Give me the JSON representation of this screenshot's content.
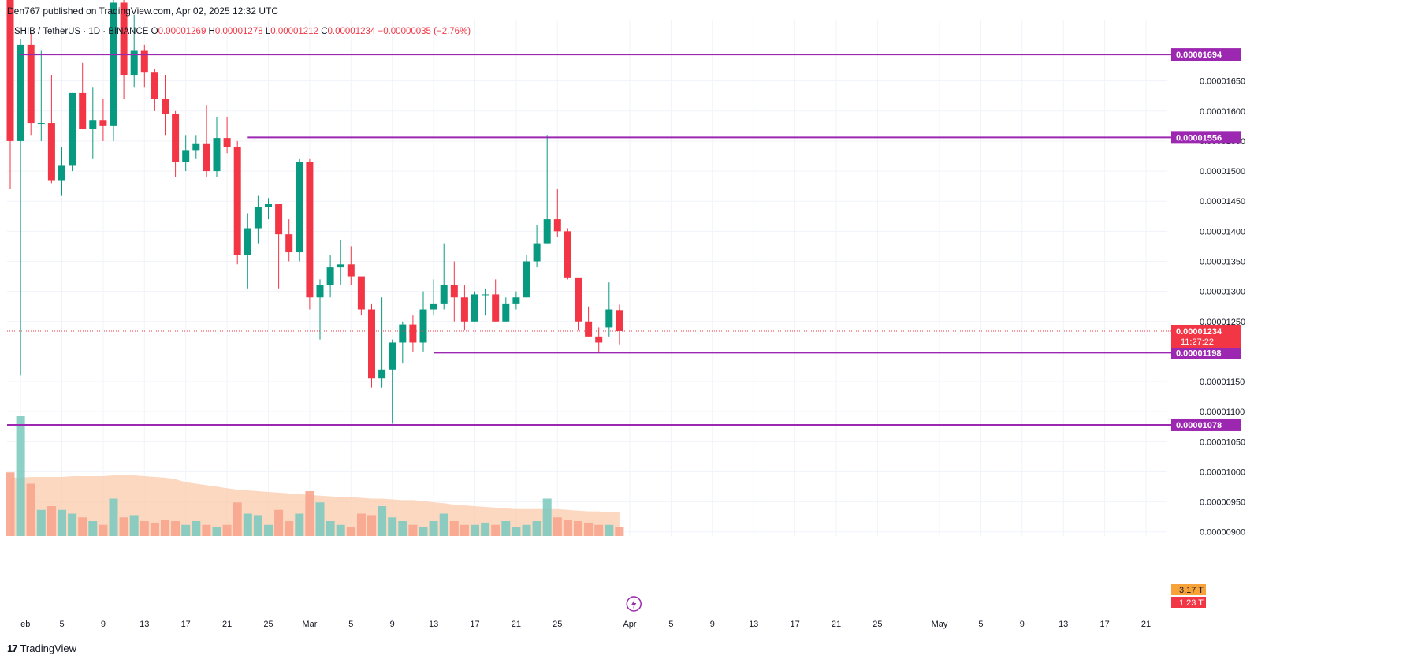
{
  "header": {
    "published": "Den767 published on TradingView.com, Apr 02, 2025 12:32 UTC"
  },
  "legend": {
    "symbol": "SHIB / TetherUS · 1D · BINANCE",
    "o_label": "O",
    "o": "0.00001269",
    "h_label": "H",
    "h": "0.00001278",
    "l_label": "L",
    "l": "0.00001212",
    "c_label": "C",
    "c": "0.00001234",
    "change": "−0.00000035 (−2.76%)"
  },
  "brand": {
    "logo": "17",
    "name": "TradingView"
  },
  "colors": {
    "up": "#089981",
    "down": "#f23645",
    "level": "#9c27b0",
    "grid": "#f0f3fa",
    "axis_text": "#131722",
    "vol_up": "#7fcbc0",
    "vol_down": "#f7a58d",
    "vol_ma": "#fbc8a5"
  },
  "chart_data": {
    "type": "candlestick",
    "y_axis_ticks": [
      "0.00001650",
      "0.00001600",
      "0.00001550",
      "0.00001500",
      "0.00001450",
      "0.00001400",
      "0.00001350",
      "0.00001300",
      "0.00001250",
      "0.00001150",
      "0.00001100",
      "0.00001050",
      "0.00001000",
      "0.00000950",
      "0.00000900"
    ],
    "ylim": [
      8.8e-06,
      1.74e-05
    ],
    "x_axis_labels": [
      "eb",
      "5",
      "9",
      "13",
      "17",
      "21",
      "25",
      "Mar",
      "5",
      "9",
      "13",
      "17",
      "21",
      "25",
      "Apr",
      "5",
      "9",
      "13",
      "17",
      "21",
      "25",
      "May",
      "5",
      "9",
      "13",
      "17",
      "21"
    ],
    "x_axis_label_days": [
      1,
      5,
      9,
      13,
      17,
      21,
      25,
      29,
      33,
      37,
      41,
      45,
      49,
      53,
      60,
      64,
      68,
      72,
      76,
      80,
      84,
      90,
      94,
      98,
      102,
      106,
      110
    ],
    "first_day": "Feb 1, 2025",
    "ohlc": [
      [
        1.8e-05,
        1.87e-05,
        1.47e-05,
        1.55e-05
      ],
      [
        1.55e-05,
        1.72e-05,
        1.16e-05,
        1.71e-05
      ],
      [
        1.71e-05,
        1.73e-05,
        1.56e-05,
        1.58e-05
      ],
      [
        1.58e-05,
        1.7e-05,
        1.55e-05,
        1.58e-05
      ],
      [
        1.58e-05,
        1.66e-05,
        1.48e-05,
        1.485e-05
      ],
      [
        1.485e-05,
        1.54e-05,
        1.46e-05,
        1.51e-05
      ],
      [
        1.51e-05,
        1.63e-05,
        1.5e-05,
        1.63e-05
      ],
      [
        1.63e-05,
        1.68e-05,
        1.57e-05,
        1.57e-05
      ],
      [
        1.57e-05,
        1.64e-05,
        1.52e-05,
        1.585e-05
      ],
      [
        1.585e-05,
        1.62e-05,
        1.55e-05,
        1.575e-05
      ],
      [
        1.575e-05,
        1.82e-05,
        1.55e-05,
        1.78e-05
      ],
      [
        1.78e-05,
        1.8e-05,
        1.62e-05,
        1.66e-05
      ],
      [
        1.66e-05,
        1.76e-05,
        1.64e-05,
        1.7e-05
      ],
      [
        1.7e-05,
        1.71e-05,
        1.64e-05,
        1.665e-05
      ],
      [
        1.665e-05,
        1.67e-05,
        1.6e-05,
        1.62e-05
      ],
      [
        1.62e-05,
        1.66e-05,
        1.56e-05,
        1.595e-05
      ],
      [
        1.595e-05,
        1.6e-05,
        1.49e-05,
        1.515e-05
      ],
      [
        1.515e-05,
        1.56e-05,
        1.5e-05,
        1.535e-05
      ],
      [
        1.535e-05,
        1.56e-05,
        1.52e-05,
        1.545e-05
      ],
      [
        1.545e-05,
        1.61e-05,
        1.49e-05,
        1.5e-05
      ],
      [
        1.5e-05,
        1.59e-05,
        1.49e-05,
        1.555e-05
      ],
      [
        1.555e-05,
        1.59e-05,
        1.53e-05,
        1.54e-05
      ],
      [
        1.54e-05,
        1.55e-05,
        1.345e-05,
        1.36e-05
      ],
      [
        1.36e-05,
        1.43e-05,
        1.305e-05,
        1.405e-05
      ],
      [
        1.405e-05,
        1.46e-05,
        1.38e-05,
        1.44e-05
      ],
      [
        1.44e-05,
        1.455e-05,
        1.42e-05,
        1.445e-05
      ],
      [
        1.445e-05,
        1.445e-05,
        1.305e-05,
        1.395e-05
      ],
      [
        1.395e-05,
        1.42e-05,
        1.35e-05,
        1.365e-05
      ],
      [
        1.365e-05,
        1.52e-05,
        1.35e-05,
        1.515e-05
      ],
      [
        1.515e-05,
        1.52e-05,
        1.27e-05,
        1.29e-05
      ],
      [
        1.29e-05,
        1.32e-05,
        1.22e-05,
        1.31e-05
      ],
      [
        1.31e-05,
        1.36e-05,
        1.29e-05,
        1.34e-05
      ],
      [
        1.34e-05,
        1.385e-05,
        1.31e-05,
        1.345e-05
      ],
      [
        1.345e-05,
        1.375e-05,
        1.31e-05,
        1.325e-05
      ],
      [
        1.325e-05,
        1.32e-05,
        1.26e-05,
        1.27e-05
      ],
      [
        1.27e-05,
        1.28e-05,
        1.14e-05,
        1.155e-05
      ],
      [
        1.155e-05,
        1.29e-05,
        1.14e-05,
        1.17e-05
      ],
      [
        1.17e-05,
        1.22e-05,
        1.08e-05,
        1.215e-05
      ],
      [
        1.215e-05,
        1.25e-05,
        1.18e-05,
        1.245e-05
      ],
      [
        1.245e-05,
        1.26e-05,
        1.2e-05,
        1.215e-05
      ],
      [
        1.215e-05,
        1.3e-05,
        1.2e-05,
        1.27e-05
      ],
      [
        1.27e-05,
        1.32e-05,
        1.26e-05,
        1.28e-05
      ],
      [
        1.28e-05,
        1.38e-05,
        1.27e-05,
        1.31e-05
      ],
      [
        1.31e-05,
        1.35e-05,
        1.25e-05,
        1.29e-05
      ],
      [
        1.29e-05,
        1.31e-05,
        1.235e-05,
        1.25e-05
      ],
      [
        1.25e-05,
        1.3e-05,
        1.25e-05,
        1.295e-05
      ],
      [
        1.295e-05,
        1.305e-05,
        1.26e-05,
        1.295e-05
      ],
      [
        1.295e-05,
        1.32e-05,
        1.25e-05,
        1.25e-05
      ],
      [
        1.25e-05,
        1.29e-05,
        1.25e-05,
        1.28e-05
      ],
      [
        1.28e-05,
        1.3e-05,
        1.27e-05,
        1.29e-05
      ],
      [
        1.29e-05,
        1.36e-05,
        1.29e-05,
        1.35e-05
      ],
      [
        1.35e-05,
        1.41e-05,
        1.34e-05,
        1.38e-05
      ],
      [
        1.38e-05,
        1.56e-05,
        1.38e-05,
        1.42e-05
      ],
      [
        1.42e-05,
        1.47e-05,
        1.39e-05,
        1.4e-05
      ],
      [
        1.4e-05,
        1.405e-05,
        1.32e-05,
        1.322e-05
      ],
      [
        1.322e-05,
        1.32e-05,
        1.235e-05,
        1.25e-05
      ],
      [
        1.25e-05,
        1.275e-05,
        1.225e-05,
        1.225e-05
      ],
      [
        1.225e-05,
        1.24e-05,
        1.2e-05,
        1.215e-05
      ],
      [
        1.24e-05,
        1.315e-05,
        1.225e-05,
        1.27e-05
      ],
      [
        1.269e-05,
        1.278e-05,
        1.212e-05,
        1.234e-05
      ]
    ],
    "volume_ma": [
      0.78,
      0.78,
      0.79,
      0.79,
      0.79,
      0.79,
      0.8,
      0.8,
      0.8,
      0.8,
      0.81,
      0.81,
      0.81,
      0.8,
      0.79,
      0.78,
      0.76,
      0.72,
      0.7,
      0.68,
      0.66,
      0.64,
      0.62,
      0.61,
      0.6,
      0.59,
      0.58,
      0.57,
      0.56,
      0.55,
      0.54,
      0.53,
      0.52,
      0.52,
      0.51,
      0.5,
      0.5,
      0.49,
      0.48,
      0.48,
      0.47,
      0.45,
      0.44,
      0.42,
      0.41,
      0.4,
      0.39,
      0.38,
      0.37,
      0.36,
      0.36,
      0.36,
      0.36,
      0.36,
      0.35,
      0.34,
      0.33,
      0.33,
      0.32,
      0.32
    ],
    "volume": [
      0.85,
      1.6,
      0.7,
      0.35,
      0.4,
      0.35,
      0.3,
      0.25,
      0.2,
      0.15,
      0.5,
      0.25,
      0.28,
      0.2,
      0.18,
      0.22,
      0.2,
      0.15,
      0.2,
      0.15,
      0.12,
      0.15,
      0.45,
      0.3,
      0.28,
      0.15,
      0.35,
      0.2,
      0.3,
      0.6,
      0.45,
      0.2,
      0.15,
      0.12,
      0.3,
      0.28,
      0.4,
      0.25,
      0.2,
      0.15,
      0.12,
      0.2,
      0.3,
      0.2,
      0.15,
      0.15,
      0.18,
      0.15,
      0.2,
      0.12,
      0.15,
      0.2,
      0.5,
      0.25,
      0.22,
      0.2,
      0.18,
      0.15,
      0.15,
      0.12
    ],
    "horizontal_levels": [
      {
        "value": 1.694e-05,
        "label": "0.00001694",
        "from_day": 1
      },
      {
        "value": 1.556e-05,
        "label": "0.00001556",
        "from_day": 23
      },
      {
        "value": 1.198e-05,
        "label": "0.00001198",
        "from_day": 41
      },
      {
        "value": 1.078e-05,
        "label": "0.00001078",
        "from_day": 0
      }
    ],
    "last_price": {
      "value": 1.234e-05,
      "label": "0.00001234",
      "countdown": "11:27:22"
    },
    "volume_labels": {
      "up": "3.17 T",
      "down": "1.23 T"
    },
    "volume_ma_color_label": "volume-ma"
  }
}
